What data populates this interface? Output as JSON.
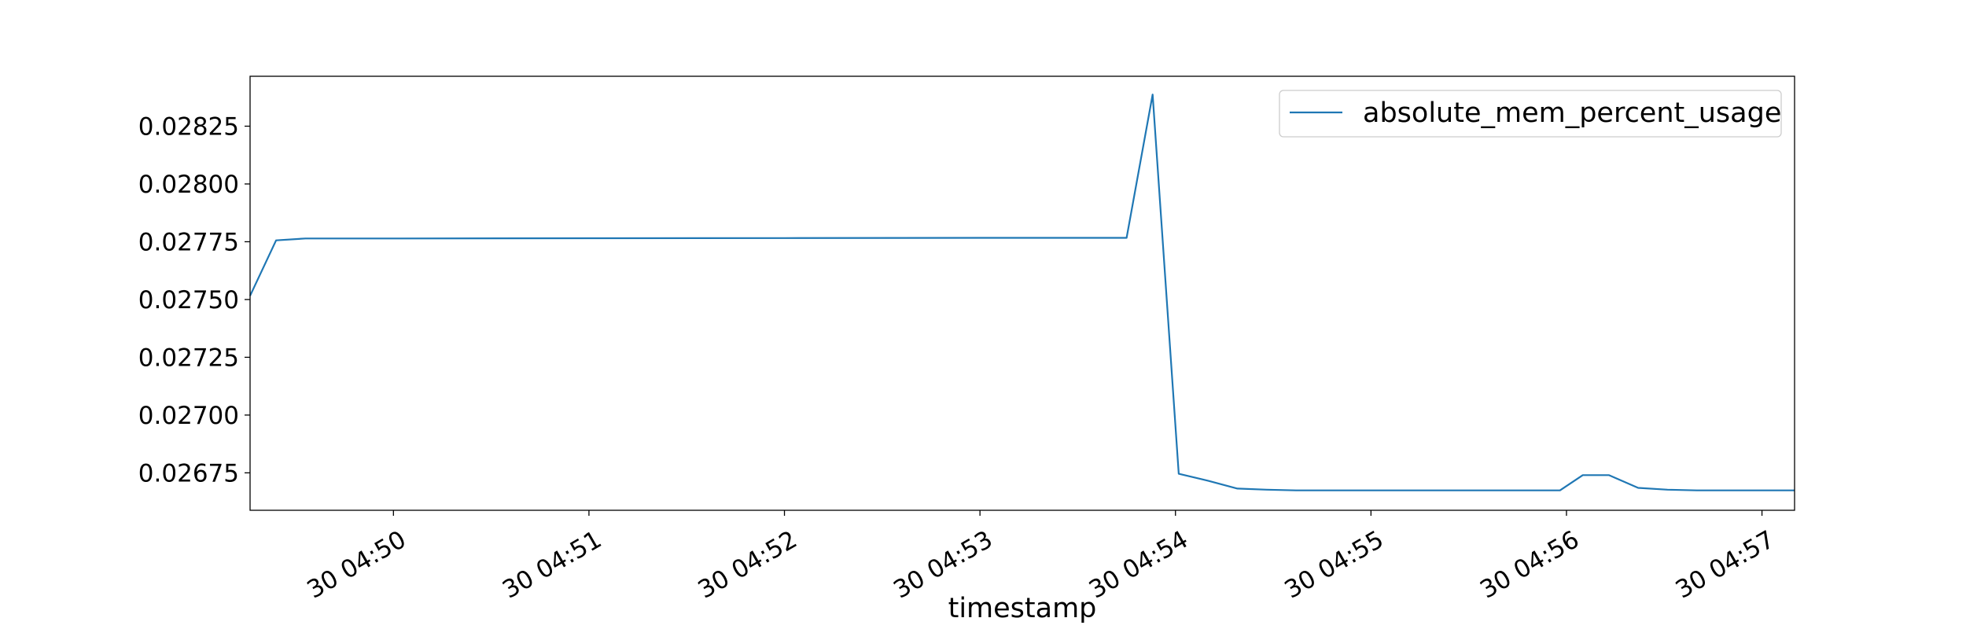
{
  "chart_data": {
    "type": "line",
    "title": "",
    "xlabel": "timestamp",
    "ylabel": "",
    "xlim": [
      "30 04:49:16",
      "30 04:57:10"
    ],
    "ylim": [
      0.026588,
      0.028466
    ],
    "x_ticks": [
      {
        "value": "30 04:50:00",
        "label": "30 04:50"
      },
      {
        "value": "30 04:51:00",
        "label": "30 04:51"
      },
      {
        "value": "30 04:52:00",
        "label": "30 04:52"
      },
      {
        "value": "30 04:53:00",
        "label": "30 04:53"
      },
      {
        "value": "30 04:54:00",
        "label": "30 04:54"
      },
      {
        "value": "30 04:55:00",
        "label": "30 04:55"
      },
      {
        "value": "30 04:56:00",
        "label": "30 04:56"
      },
      {
        "value": "30 04:57:00",
        "label": "30 04:57"
      }
    ],
    "y_ticks": [
      {
        "value": 0.02675,
        "label": "0.02675"
      },
      {
        "value": 0.027,
        "label": "0.02700"
      },
      {
        "value": 0.02725,
        "label": "0.02725"
      },
      {
        "value": 0.0275,
        "label": "0.02750"
      },
      {
        "value": 0.02775,
        "label": "0.02775"
      },
      {
        "value": 0.028,
        "label": "0.02800"
      },
      {
        "value": 0.02825,
        "label": "0.02825"
      }
    ],
    "grid": false,
    "legend_position": "top-right",
    "series": [
      {
        "name": "absolute_mem_percent_usage",
        "color": "#1f77b4",
        "x": [
          "30 04:49:16",
          "30 04:49:24",
          "30 04:49:33",
          "30 04:50:00",
          "30 04:51:00",
          "30 04:52:00",
          "30 04:53:00",
          "30 04:53:45",
          "30 04:53:53",
          "30 04:54:01",
          "30 04:54:10",
          "30 04:54:19",
          "30 04:54:28",
          "30 04:54:37",
          "30 04:55:00",
          "30 04:55:30",
          "30 04:55:58",
          "30 04:56:05",
          "30 04:56:13",
          "30 04:56:22",
          "30 04:56:31",
          "30 04:56:40",
          "30 04:57:00",
          "30 04:57:10"
        ],
        "y": [
          0.027516,
          0.027756,
          0.027764,
          0.027764,
          0.027765,
          0.027766,
          0.027767,
          0.027767,
          0.028387,
          0.026746,
          0.026716,
          0.026682,
          0.026677,
          0.026674,
          0.026674,
          0.026674,
          0.026674,
          0.02674,
          0.02674,
          0.026685,
          0.026677,
          0.026674,
          0.026674,
          0.026674
        ]
      }
    ]
  }
}
